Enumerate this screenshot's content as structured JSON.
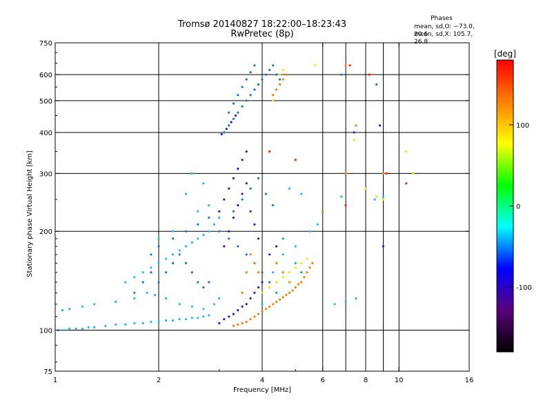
{
  "chart_data": {
    "type": "scatter",
    "title_line1": "Tromsø 20140827 18:22:00–18:23:43",
    "title_line2": "RwPretec (8p)",
    "phases": {
      "title": "Phases",
      "o_stats": "mean, sd,O: −73.0, 20.6",
      "x_stats": "mean, sd,X: 105.7, 26.8"
    },
    "xlabel": "Frequency [MHz]",
    "ylabel": "Stationary phase Virtual Height [km]",
    "x_scale": "log",
    "y_scale": "log",
    "xlim": [
      1,
      16
    ],
    "ylim": [
      75,
      750
    ],
    "x_ticks": [
      1,
      2,
      4,
      6,
      8,
      10,
      16
    ],
    "y_ticks": [
      75,
      100,
      200,
      300,
      400,
      500,
      600,
      750
    ],
    "x_gridlines": [
      2,
      4,
      6,
      7,
      8,
      9,
      10
    ],
    "y_gridlines": [
      100,
      200,
      300,
      400,
      500,
      600
    ],
    "colorbar": {
      "label": "[deg]",
      "range": [
        -180,
        180
      ],
      "ticks": [
        -100,
        0,
        100
      ],
      "colors": [
        "#000000",
        "#5a007a",
        "#0000ff",
        "#00ffff",
        "#00ff00",
        "#ffff00",
        "#ff8000",
        "#ff0000"
      ]
    },
    "grid": true,
    "legend": "colorbar-right",
    "series": [
      {
        "color": "#29b5f2",
        "points": [
          [
            1.02,
            100
          ],
          [
            1.06,
            100
          ],
          [
            1.1,
            101
          ],
          [
            1.15,
            101
          ],
          [
            1.2,
            101
          ],
          [
            1.25,
            102
          ],
          [
            1.3,
            102
          ],
          [
            1.4,
            103
          ],
          [
            1.5,
            104
          ],
          [
            1.6,
            104
          ],
          [
            1.7,
            105
          ],
          [
            1.8,
            105
          ],
          [
            1.9,
            106
          ],
          [
            2.0,
            106
          ],
          [
            2.1,
            107
          ],
          [
            2.2,
            107
          ],
          [
            2.3,
            108
          ],
          [
            2.4,
            108
          ],
          [
            2.5,
            109
          ],
          [
            2.6,
            109
          ],
          [
            2.7,
            110
          ],
          [
            2.8,
            111
          ],
          [
            1.05,
            115
          ],
          [
            1.1,
            116
          ],
          [
            1.2,
            118
          ],
          [
            1.3,
            120
          ],
          [
            1.5,
            122
          ],
          [
            1.7,
            125
          ],
          [
            1.85,
            130
          ],
          [
            1.95,
            128
          ],
          [
            2.1,
            125
          ],
          [
            2.3,
            120
          ],
          [
            2.5,
            118
          ],
          [
            2.7,
            116
          ],
          [
            2.9,
            120
          ],
          [
            3.0,
            125
          ],
          [
            1.6,
            140
          ],
          [
            1.7,
            145
          ],
          [
            1.8,
            150
          ],
          [
            1.9,
            155
          ],
          [
            2.0,
            160
          ],
          [
            2.1,
            165
          ],
          [
            2.2,
            170
          ],
          [
            2.3,
            175
          ],
          [
            2.4,
            180
          ],
          [
            2.5,
            185
          ],
          [
            2.6,
            190
          ],
          [
            2.7,
            195
          ],
          [
            2.8,
            200
          ],
          [
            2.9,
            210
          ],
          [
            3.0,
            220
          ],
          [
            2.4,
            260
          ],
          [
            2.5,
            300
          ],
          [
            2.7,
            280
          ],
          [
            2.6,
            230
          ],
          [
            2.2,
            200
          ],
          [
            2.0,
            190
          ],
          [
            2.8,
            240
          ],
          [
            4.0,
            120
          ],
          [
            4.3,
            150
          ],
          [
            4.6,
            170
          ],
          [
            5.0,
            180
          ],
          [
            5.5,
            200
          ],
          [
            5.8,
            210
          ],
          [
            6.0,
            230
          ],
          [
            5.2,
            260
          ],
          [
            4.8,
            270
          ],
          [
            6.5,
            120
          ],
          [
            7.0,
            122
          ],
          [
            7.5,
            125
          ],
          [
            6.8,
            255
          ],
          [
            8.5,
            250
          ],
          [
            9.0,
            255
          ]
        ]
      },
      {
        "color": "#1f6fe0",
        "points": [
          [
            1.7,
            130
          ],
          [
            1.8,
            140
          ],
          [
            1.9,
            150
          ],
          [
            2.0,
            140
          ],
          [
            2.1,
            150
          ],
          [
            2.2,
            160
          ],
          [
            2.3,
            170
          ],
          [
            2.4,
            160
          ],
          [
            2.5,
            150
          ],
          [
            2.6,
            140
          ],
          [
            2.7,
            135
          ],
          [
            2.8,
            140
          ],
          [
            1.9,
            170
          ],
          [
            2.0,
            180
          ],
          [
            2.2,
            190
          ],
          [
            2.4,
            200
          ],
          [
            2.6,
            210
          ],
          [
            2.8,
            220
          ],
          [
            3.0,
            200
          ],
          [
            3.2,
            190
          ],
          [
            3.4,
            180
          ],
          [
            3.6,
            170
          ],
          [
            3.8,
            160
          ],
          [
            4.0,
            150
          ],
          [
            4.2,
            140
          ],
          [
            3.3,
            230
          ],
          [
            3.5,
            250
          ],
          [
            3.7,
            270
          ],
          [
            3.9,
            290
          ],
          [
            4.1,
            260
          ],
          [
            4.3,
            240
          ],
          [
            3.1,
            400
          ],
          [
            3.2,
            420
          ],
          [
            3.3,
            440
          ],
          [
            3.4,
            460
          ],
          [
            3.5,
            480
          ],
          [
            3.6,
            500
          ],
          [
            3.7,
            520
          ],
          [
            3.8,
            540
          ],
          [
            3.9,
            560
          ],
          [
            4.0,
            580
          ],
          [
            4.1,
            600
          ],
          [
            4.2,
            620
          ],
          [
            4.3,
            640
          ],
          [
            3.2,
            460
          ],
          [
            3.3,
            490
          ],
          [
            3.4,
            520
          ],
          [
            3.5,
            550
          ],
          [
            3.6,
            580
          ],
          [
            3.7,
            610
          ],
          [
            3.8,
            640
          ],
          [
            4.4,
            600
          ],
          [
            4.5,
            580
          ],
          [
            6.8,
            600
          ],
          [
            8.6,
            560
          ]
        ]
      },
      {
        "color": "#1e20c8",
        "points": [
          [
            3.0,
            105
          ],
          [
            3.1,
            108
          ],
          [
            3.2,
            110
          ],
          [
            3.3,
            112
          ],
          [
            3.4,
            115
          ],
          [
            3.5,
            118
          ],
          [
            3.6,
            120
          ],
          [
            3.7,
            125
          ],
          [
            3.8,
            130
          ],
          [
            3.9,
            135
          ],
          [
            4.0,
            140
          ],
          [
            3.1,
            180
          ],
          [
            3.2,
            200
          ],
          [
            3.3,
            220
          ],
          [
            3.4,
            240
          ],
          [
            3.5,
            260
          ],
          [
            3.6,
            280
          ],
          [
            3.7,
            230
          ],
          [
            3.8,
            210
          ],
          [
            3.9,
            190
          ],
          [
            3.0,
            230
          ],
          [
            3.1,
            250
          ],
          [
            3.2,
            270
          ],
          [
            3.3,
            290
          ],
          [
            3.4,
            310
          ],
          [
            3.5,
            330
          ],
          [
            3.6,
            350
          ],
          [
            4.2,
            170
          ],
          [
            4.4,
            180
          ],
          [
            3.05,
            395
          ],
          [
            3.15,
            410
          ],
          [
            3.25,
            430
          ],
          [
            3.35,
            450
          ],
          [
            7.4,
            400
          ],
          [
            8.8,
            420
          ],
          [
            9.0,
            180
          ]
        ]
      },
      {
        "color": "#ff7a00",
        "points": [
          [
            3.3,
            103
          ],
          [
            3.4,
            104
          ],
          [
            3.5,
            105
          ],
          [
            3.6,
            106
          ],
          [
            3.7,
            108
          ],
          [
            3.8,
            110
          ],
          [
            3.9,
            112
          ],
          [
            4.0,
            114
          ],
          [
            4.1,
            116
          ],
          [
            4.2,
            118
          ],
          [
            4.3,
            120
          ],
          [
            4.4,
            122
          ],
          [
            4.5,
            124
          ],
          [
            4.6,
            126
          ],
          [
            4.7,
            128
          ],
          [
            4.8,
            130
          ],
          [
            4.9,
            132
          ],
          [
            5.0,
            135
          ],
          [
            5.1,
            138
          ],
          [
            5.2,
            140
          ],
          [
            5.3,
            145
          ],
          [
            5.4,
            150
          ],
          [
            5.5,
            155
          ],
          [
            5.6,
            160
          ],
          [
            3.5,
            130
          ],
          [
            3.6,
            150
          ],
          [
            3.7,
            170
          ],
          [
            3.8,
            160
          ],
          [
            3.9,
            150
          ],
          [
            4.4,
            160
          ],
          [
            4.6,
            150
          ],
          [
            4.8,
            140
          ],
          [
            4.4,
            540
          ],
          [
            4.5,
            560
          ],
          [
            4.6,
            580
          ],
          [
            4.7,
            600
          ],
          [
            4.3,
            520
          ],
          [
            7.0,
            640
          ],
          [
            6.0,
            230
          ],
          [
            7.0,
            300
          ],
          [
            7.5,
            420
          ],
          [
            9.0,
            300
          ]
        ]
      },
      {
        "color": "#f5e600",
        "points": [
          [
            4.0,
            130
          ],
          [
            4.2,
            135
          ],
          [
            4.4,
            140
          ],
          [
            4.6,
            145
          ],
          [
            4.8,
            150
          ],
          [
            5.0,
            155
          ],
          [
            5.2,
            160
          ],
          [
            5.4,
            165
          ],
          [
            4.5,
            600
          ],
          [
            4.6,
            620
          ],
          [
            4.3,
            500
          ],
          [
            5.7,
            640
          ],
          [
            7.4,
            380
          ],
          [
            8.0,
            270
          ],
          [
            8.6,
            255
          ],
          [
            9.0,
            250
          ],
          [
            10.5,
            350
          ],
          [
            11.0,
            300
          ]
        ]
      },
      {
        "color": "#ff2000",
        "points": [
          [
            4.2,
            350
          ],
          [
            5.0,
            330
          ],
          [
            7.0,
            240
          ],
          [
            7.2,
            640
          ],
          [
            9.2,
            300
          ],
          [
            10.5,
            280
          ],
          [
            8.2,
            600
          ]
        ]
      },
      {
        "color": "#00c060",
        "points": [
          [
            4.6,
            190
          ],
          [
            5.0,
            160
          ],
          [
            5.2,
            150
          ],
          [
            4.4,
            130
          ]
        ]
      }
    ]
  }
}
